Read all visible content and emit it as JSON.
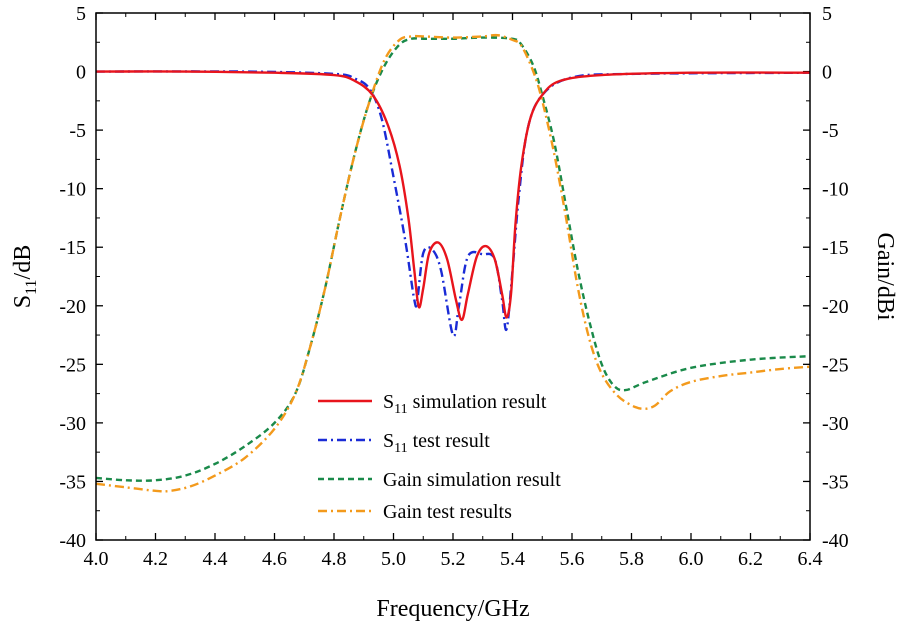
{
  "chart_data": {
    "type": "line",
    "xlabel": "Frequency/GHz",
    "ylabel_left": {
      "base": "S",
      "sub": "11",
      "rest": "/dB"
    },
    "ylabel_right": "Gain/dBi",
    "xlim": [
      4.0,
      6.4
    ],
    "ylim": [
      -40,
      5
    ],
    "x_ticks": [
      "4.0",
      "4.2",
      "4.4",
      "4.6",
      "4.8",
      "5.0",
      "5.2",
      "5.4",
      "5.6",
      "5.8",
      "6.0",
      "6.2",
      "6.4"
    ],
    "y_ticks": [
      "5",
      "0",
      "-5",
      "-10",
      "-15",
      "-20",
      "-25",
      "-30",
      "-35",
      "-40"
    ],
    "legend_position": "lower-center",
    "series": [
      {
        "name": "S11 simulation result",
        "label_base": "S",
        "label_sub": "11",
        "label_rest": " simulation result",
        "color": "#e8141c",
        "dash": "solid",
        "points": [
          [
            4.0,
            0
          ],
          [
            4.3,
            0
          ],
          [
            4.6,
            -0.1
          ],
          [
            4.8,
            -0.3
          ],
          [
            4.87,
            -0.8
          ],
          [
            4.93,
            -2
          ],
          [
            4.98,
            -4.5
          ],
          [
            5.02,
            -8
          ],
          [
            5.05,
            -12.5
          ],
          [
            5.07,
            -17
          ],
          [
            5.085,
            -20.1
          ],
          [
            5.1,
            -18.5
          ],
          [
            5.12,
            -15.5
          ],
          [
            5.15,
            -14.6
          ],
          [
            5.18,
            -16
          ],
          [
            5.21,
            -19.5
          ],
          [
            5.23,
            -21.2
          ],
          [
            5.25,
            -19
          ],
          [
            5.28,
            -15.8
          ],
          [
            5.31,
            -14.9
          ],
          [
            5.34,
            -16
          ],
          [
            5.365,
            -19
          ],
          [
            5.38,
            -21
          ],
          [
            5.395,
            -19
          ],
          [
            5.41,
            -13
          ],
          [
            5.43,
            -8
          ],
          [
            5.46,
            -4
          ],
          [
            5.5,
            -2
          ],
          [
            5.56,
            -0.8
          ],
          [
            5.7,
            -0.3
          ],
          [
            6.0,
            -0.1
          ],
          [
            6.4,
            -0.1
          ]
        ]
      },
      {
        "name": "S11 test result",
        "label_base": "S",
        "label_sub": "11",
        "label_rest": " test result",
        "color": "#1a2bd6",
        "dash": "dashdot",
        "points": [
          [
            4.0,
            0
          ],
          [
            4.5,
            0
          ],
          [
            4.8,
            -0.2
          ],
          [
            4.87,
            -0.6
          ],
          [
            4.92,
            -1.5
          ],
          [
            4.96,
            -4
          ],
          [
            5.0,
            -9
          ],
          [
            5.04,
            -14.5
          ],
          [
            5.07,
            -19.5
          ],
          [
            5.08,
            -19.5
          ],
          [
            5.1,
            -15.5
          ],
          [
            5.13,
            -15.2
          ],
          [
            5.16,
            -17
          ],
          [
            5.2,
            -22.5
          ],
          [
            5.22,
            -20
          ],
          [
            5.25,
            -15.8
          ],
          [
            5.3,
            -15.6
          ],
          [
            5.34,
            -16
          ],
          [
            5.365,
            -19.5
          ],
          [
            5.38,
            -22
          ],
          [
            5.4,
            -17
          ],
          [
            5.42,
            -11
          ],
          [
            5.45,
            -5
          ],
          [
            5.5,
            -2
          ],
          [
            5.6,
            -0.5
          ],
          [
            5.8,
            -0.2
          ],
          [
            6.4,
            -0.1
          ]
        ]
      },
      {
        "name": "Gain simulation result",
        "color": "#1a8a4a",
        "dash": "dashed",
        "points": [
          [
            4.0,
            -34.7
          ],
          [
            4.1,
            -34.9
          ],
          [
            4.2,
            -34.9
          ],
          [
            4.3,
            -34.5
          ],
          [
            4.4,
            -33.5
          ],
          [
            4.5,
            -32
          ],
          [
            4.6,
            -30
          ],
          [
            4.67,
            -27.5
          ],
          [
            4.72,
            -23.5
          ],
          [
            4.77,
            -18.5
          ],
          [
            4.82,
            -12.5
          ],
          [
            4.87,
            -7
          ],
          [
            4.92,
            -2.5
          ],
          [
            4.97,
            0.5
          ],
          [
            5.02,
            2.3
          ],
          [
            5.06,
            2.8
          ],
          [
            5.1,
            2.8
          ],
          [
            5.2,
            2.8
          ],
          [
            5.3,
            2.9
          ],
          [
            5.4,
            2.8
          ],
          [
            5.43,
            2.3
          ],
          [
            5.47,
            0.5
          ],
          [
            5.5,
            -2
          ],
          [
            5.54,
            -6
          ],
          [
            5.58,
            -11.5
          ],
          [
            5.62,
            -17
          ],
          [
            5.66,
            -21.5
          ],
          [
            5.7,
            -25
          ],
          [
            5.74,
            -26.8
          ],
          [
            5.78,
            -27.2
          ],
          [
            5.85,
            -26.5
          ],
          [
            6.0,
            -25.3
          ],
          [
            6.2,
            -24.6
          ],
          [
            6.4,
            -24.3
          ]
        ]
      },
      {
        "name": "Gain test results",
        "color": "#f39a1c",
        "dash": "dashdot",
        "points": [
          [
            4.0,
            -35.2
          ],
          [
            4.1,
            -35.5
          ],
          [
            4.2,
            -35.8
          ],
          [
            4.25,
            -35.8
          ],
          [
            4.32,
            -35.4
          ],
          [
            4.4,
            -34.5
          ],
          [
            4.5,
            -33
          ],
          [
            4.6,
            -30.5
          ],
          [
            4.67,
            -27.5
          ],
          [
            4.72,
            -23.5
          ],
          [
            4.77,
            -18.5
          ],
          [
            4.82,
            -12.5
          ],
          [
            4.87,
            -7
          ],
          [
            4.92,
            -2.5
          ],
          [
            4.97,
            1
          ],
          [
            5.02,
            2.7
          ],
          [
            5.06,
            3.0
          ],
          [
            5.1,
            3.0
          ],
          [
            5.2,
            2.9
          ],
          [
            5.3,
            3.0
          ],
          [
            5.35,
            3.1
          ],
          [
            5.4,
            2.7
          ],
          [
            5.43,
            2.2
          ],
          [
            5.47,
            0
          ],
          [
            5.5,
            -2.5
          ],
          [
            5.54,
            -7
          ],
          [
            5.58,
            -12.5
          ],
          [
            5.62,
            -18.5
          ],
          [
            5.66,
            -23
          ],
          [
            5.7,
            -25.8
          ],
          [
            5.75,
            -27.6
          ],
          [
            5.8,
            -28.5
          ],
          [
            5.84,
            -28.8
          ],
          [
            5.88,
            -28.5
          ],
          [
            5.93,
            -27.3
          ],
          [
            6.0,
            -26.5
          ],
          [
            6.1,
            -26
          ],
          [
            6.2,
            -25.7
          ],
          [
            6.3,
            -25.4
          ],
          [
            6.4,
            -25.2
          ]
        ]
      }
    ]
  }
}
